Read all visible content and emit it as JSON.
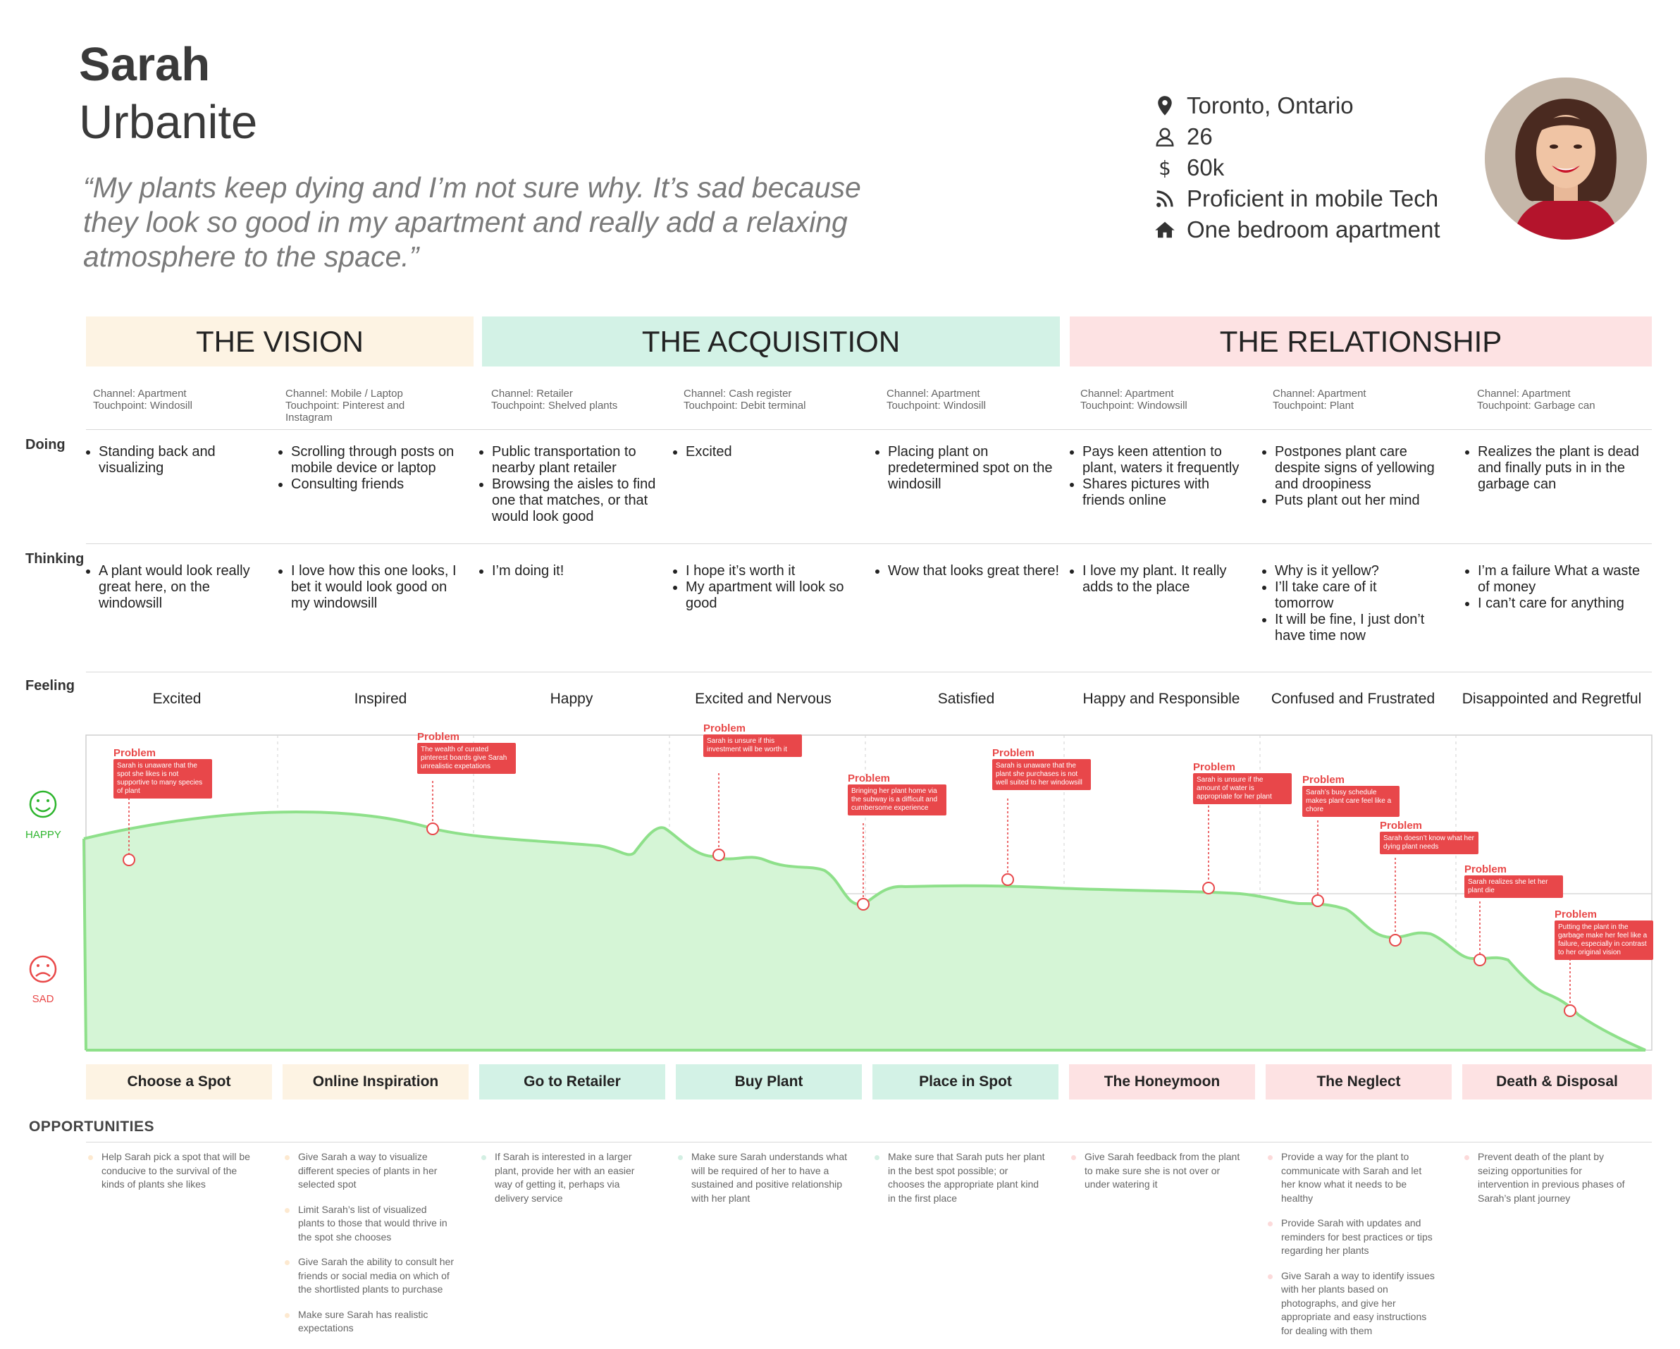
{
  "persona": {
    "name": "Sarah",
    "role": "Urbanite",
    "quote": "“My plants keep dying and I’m not sure why. It’s sad because they look so good in my apartment and really add a relaxing atmosphere to the space.”",
    "info": [
      {
        "icon": "location-pin-icon",
        "text": "Toronto, Ontario"
      },
      {
        "icon": "person-icon",
        "text": "26"
      },
      {
        "icon": "dollar-icon",
        "text": "60k"
      },
      {
        "icon": "rss-icon",
        "text": "Proficient in mobile Tech"
      },
      {
        "icon": "home-icon",
        "text": "One bedroom apartment"
      }
    ]
  },
  "colors": {
    "yellow": "#fdf3e3",
    "green": "#d3f2e6",
    "red": "#fde2e3",
    "curve_fill": "#d5f5d6",
    "curve_line": "#8ee08a",
    "problem": "#e8474a",
    "happy": "#2db52d",
    "sad": "#e94848"
  },
  "phases": [
    "THE VISION",
    "THE ACQUISITION",
    "THE RELATIONSHIP"
  ],
  "row_labels": {
    "doing": "Doing",
    "thinking": "Thinking",
    "feeling": "Feeling"
  },
  "columns": [
    {
      "channel": "Channel: Apartment",
      "touchpoint": "Touchpoint: Windosill",
      "doing": [
        "Standing back and visualizing"
      ],
      "thinking": [
        "A plant would look really great here, on the windowsill"
      ],
      "feeling": "Excited",
      "stage": "Choose a Spot"
    },
    {
      "channel": "Channel: Mobile / Laptop",
      "touchpoint": "Touchpoint: Pinterest and Instagram",
      "doing": [
        "Scrolling through posts on mobile device or laptop",
        "Consulting friends"
      ],
      "thinking": [
        "I love how this one looks, I bet it would look good on my windowsill"
      ],
      "feeling": "Inspired",
      "stage": "Online Inspiration"
    },
    {
      "channel": "Channel: Retailer",
      "touchpoint": "Touchpoint: Shelved plants",
      "doing": [
        "Public transportation to nearby plant retailer",
        "Browsing the aisles to find one that matches, or that would look good"
      ],
      "thinking": [
        "I’m doing it!"
      ],
      "feeling": "Happy",
      "stage": "Go to Retailer"
    },
    {
      "channel": "Channel: Cash register",
      "touchpoint": "Touchpoint: Debit terminal",
      "doing": [
        "Excited"
      ],
      "thinking": [
        "I hope it’s worth it",
        "My apartment will look so good"
      ],
      "feeling": "Excited and Nervous",
      "stage": "Buy Plant"
    },
    {
      "channel": "Channel: Apartment",
      "touchpoint": "Touchpoint: Windosill",
      "doing": [
        "Placing plant on predetermined spot on the windosill"
      ],
      "thinking": [
        "Wow that looks great there!"
      ],
      "feeling": "Satisfied",
      "stage": "Place in Spot"
    },
    {
      "channel": "Channel: Apartment",
      "touchpoint": "Touchpoint: Windowsill",
      "doing": [
        "Pays keen attention to plant, waters it frequently",
        "Shares pictures with friends online"
      ],
      "thinking": [
        "I love my plant. It really adds to the place"
      ],
      "feeling": "Happy and Responsible",
      "stage": "The Honeymoon"
    },
    {
      "channel": "Channel: Apartment",
      "touchpoint": "Touchpoint: Plant",
      "doing": [
        "Postpones plant care despite signs of yellowing and droopiness",
        "Puts plant out her mind"
      ],
      "thinking": [
        "Why is it yellow?",
        "I’ll take care of it tomorrow",
        "It will be fine, I just don’t have time now"
      ],
      "feeling": "Confused and Frustrated",
      "stage": "The Neglect"
    },
    {
      "channel": "Channel: Apartment",
      "touchpoint": "Touchpoint: Garbage can",
      "doing": [
        "Realizes the plant is dead and finally puts in in the garbage can"
      ],
      "thinking": [
        "I’m a failure What a waste of money",
        "I can’t care for anything"
      ],
      "feeling": "Disappointed and Regretful",
      "stage": "Death & Disposal"
    }
  ],
  "emotion": {
    "happy_label": "HAPPY",
    "sad_label": "SAD"
  },
  "problem_label": "Problem",
  "problems": [
    "Sarah is unaware that the spot she likes is not supportive to many species of plant",
    "The wealth of curated pinterest boards give Sarah unrealistic expetations",
    "Sarah is unsure if this investment will be worth it",
    "Bringing her plant home via the subway is a difficult and cumbersome experience",
    "Sarah is unaware that the plant she purchases is not well suited to her windowsill",
    "Sarah is unsure if the amount of water is appropriate for her plant",
    "Sarah’s busy schedule makes plant care feel like a chore",
    "Sarah doesn’t know what her dying plant needs",
    "Sarah realizes she let her plant die",
    "Putting the plant in the garbage make her feel like a failure, especially in contrast to her original vision"
  ],
  "opportunities_title": "OPPORTUNITIES",
  "opportunities": [
    [
      "Help Sarah pick a spot that will be conducive to the survival of the kinds of plants she likes"
    ],
    [
      "Give Sarah a way to visualize different species of plants in her selected spot",
      "Limit Sarah’s list of visualized plants to those that would thrive in the spot she chooses",
      "Give Sarah the ability to consult her friends or social media on which of the shortlisted plants to purchase",
      "Make sure Sarah has realistic expectations"
    ],
    [
      "If Sarah is interested in a larger plant, provide her with an easier way of getting it, perhaps via delivery service"
    ],
    [
      "Make sure Sarah understands what will be required of her to have a sustained and positive relationship with her plant"
    ],
    [
      "Make sure that Sarah puts her plant in the best spot possible; or chooses the appropriate plant kind in the first place"
    ],
    [
      "Give Sarah feedback from the plant to make sure she is not over or under watering it"
    ],
    [
      "Provide a way for the plant to communicate with Sarah and let her know what it needs to be healthy",
      "Provide Sarah with updates and reminders for best practices or tips regarding her plants",
      "Give Sarah a way to identify issues with her plants based on photographs, and give her appropriate and easy instructions for dealing with them"
    ],
    [
      "Prevent death of the plant by seizing opportunities for intervention in previous phases of Sarah’s plant journey"
    ]
  ]
}
